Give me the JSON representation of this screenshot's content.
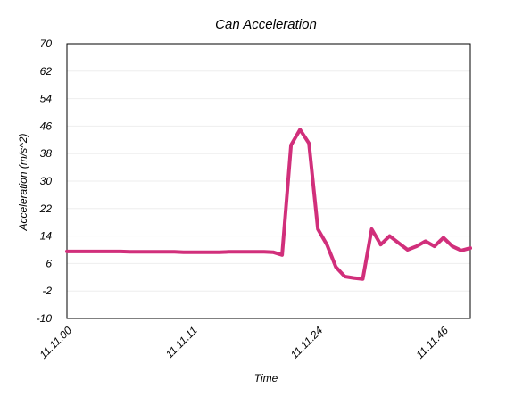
{
  "chart_data": {
    "type": "line",
    "title": "Can Acceleration",
    "x_label": "Time",
    "y_label": "Acceleration (m/s^2)",
    "categories": [
      "11.11.00",
      null,
      null,
      null,
      null,
      null,
      null,
      null,
      null,
      null,
      null,
      null,
      null,
      null,
      "11.11.11",
      null,
      null,
      null,
      null,
      null,
      null,
      null,
      null,
      null,
      null,
      null,
      null,
      null,
      "11.11.24",
      null,
      null,
      null,
      null,
      null,
      null,
      null,
      null,
      null,
      null,
      null,
      null,
      null,
      "11.11.46",
      null,
      null,
      null
    ],
    "series": [
      {
        "name": "Acceleration",
        "color": "#d12f7b",
        "values": [
          9.5,
          9.5,
          9.5,
          9.5,
          9.5,
          9.5,
          9.5,
          9.4,
          9.4,
          9.4,
          9.4,
          9.4,
          9.4,
          9.3,
          9.3,
          9.3,
          9.3,
          9.3,
          9.4,
          9.4,
          9.4,
          9.4,
          9.4,
          9.3,
          8.5,
          40.5,
          45,
          41,
          16,
          11.5,
          5,
          2.2,
          1.8,
          1.5,
          16,
          11.5,
          14,
          12,
          10,
          11,
          12.5,
          11,
          13.5,
          11,
          9.8,
          10.5
        ]
      }
    ],
    "ylim": [
      -10,
      70
    ],
    "yticks": [
      -10,
      -2,
      6,
      14,
      22,
      30,
      38,
      46,
      54,
      62,
      70
    ],
    "grid": true
  }
}
